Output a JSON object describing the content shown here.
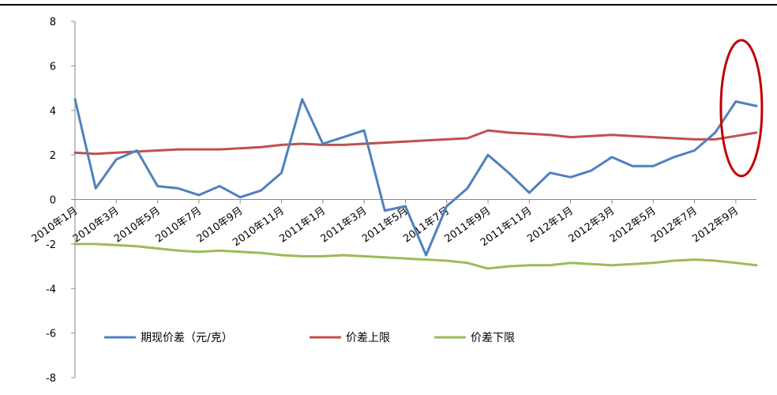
{
  "chart_data": {
    "type": "line",
    "title": "",
    "xlabel": "",
    "ylabel": "",
    "ylim": [
      -8,
      8
    ],
    "yticks": [
      -8,
      -6,
      -4,
      -2,
      0,
      2,
      4,
      6,
      8
    ],
    "grid": false,
    "legend_position": "bottom-left",
    "x_tick_labels": [
      "2010年1月",
      "2010年3月",
      "2010年5月",
      "2010年7月",
      "2010年9月",
      "2010年11月",
      "2011年1月",
      "2011年3月",
      "2011年5月",
      "2011年7月",
      "2011年9月",
      "2011年11月",
      "2012年1月",
      "2012年3月",
      "2012年5月",
      "2012年7月",
      "2012年9月"
    ],
    "x": [
      "2010-01",
      "2010-02",
      "2010-03",
      "2010-04",
      "2010-05",
      "2010-06",
      "2010-07",
      "2010-08",
      "2010-09",
      "2010-10",
      "2010-11",
      "2010-12",
      "2011-01",
      "2011-02",
      "2011-03",
      "2011-04",
      "2011-05",
      "2011-06",
      "2011-07",
      "2011-08",
      "2011-09",
      "2011-10",
      "2011-11",
      "2011-12",
      "2012-01",
      "2012-02",
      "2012-03",
      "2012-04",
      "2012-05",
      "2012-06",
      "2012-07",
      "2012-08",
      "2012-09",
      "2012-10"
    ],
    "series": [
      {
        "name": "期现价差（元/克）",
        "color": "#4F81BD",
        "values": [
          4.5,
          0.5,
          1.8,
          2.2,
          0.6,
          0.5,
          0.2,
          0.6,
          0.1,
          0.4,
          1.2,
          4.5,
          2.5,
          2.8,
          3.1,
          -0.5,
          -0.3,
          -2.5,
          -0.3,
          0.5,
          2.0,
          1.2,
          0.3,
          1.2,
          1.0,
          1.3,
          1.9,
          1.5,
          1.5,
          1.9,
          2.2,
          3.0,
          4.4,
          4.2
        ]
      },
      {
        "name": "价差上限",
        "color": "#C0504D",
        "values": [
          2.1,
          2.05,
          2.1,
          2.15,
          2.2,
          2.25,
          2.25,
          2.25,
          2.3,
          2.35,
          2.45,
          2.5,
          2.45,
          2.45,
          2.5,
          2.55,
          2.6,
          2.65,
          2.7,
          2.75,
          3.1,
          3.0,
          2.95,
          2.9,
          2.8,
          2.85,
          2.9,
          2.85,
          2.8,
          2.75,
          2.7,
          2.7,
          2.85,
          3.0
        ]
      },
      {
        "name": "价差下限",
        "color": "#9BBB59",
        "values": [
          -2.0,
          -2.0,
          -2.05,
          -2.1,
          -2.2,
          -2.3,
          -2.35,
          -2.3,
          -2.35,
          -2.4,
          -2.5,
          -2.55,
          -2.55,
          -2.5,
          -2.55,
          -2.6,
          -2.65,
          -2.7,
          -2.75,
          -2.85,
          -3.1,
          -3.0,
          -2.95,
          -2.95,
          -2.85,
          -2.9,
          -2.95,
          -2.9,
          -2.85,
          -2.75,
          -2.7,
          -2.75,
          -2.85,
          -2.95
        ]
      }
    ],
    "annotation": {
      "shape": "ellipse",
      "color": "#C00000",
      "x_range": [
        "2012-09",
        "2012-10"
      ]
    }
  }
}
